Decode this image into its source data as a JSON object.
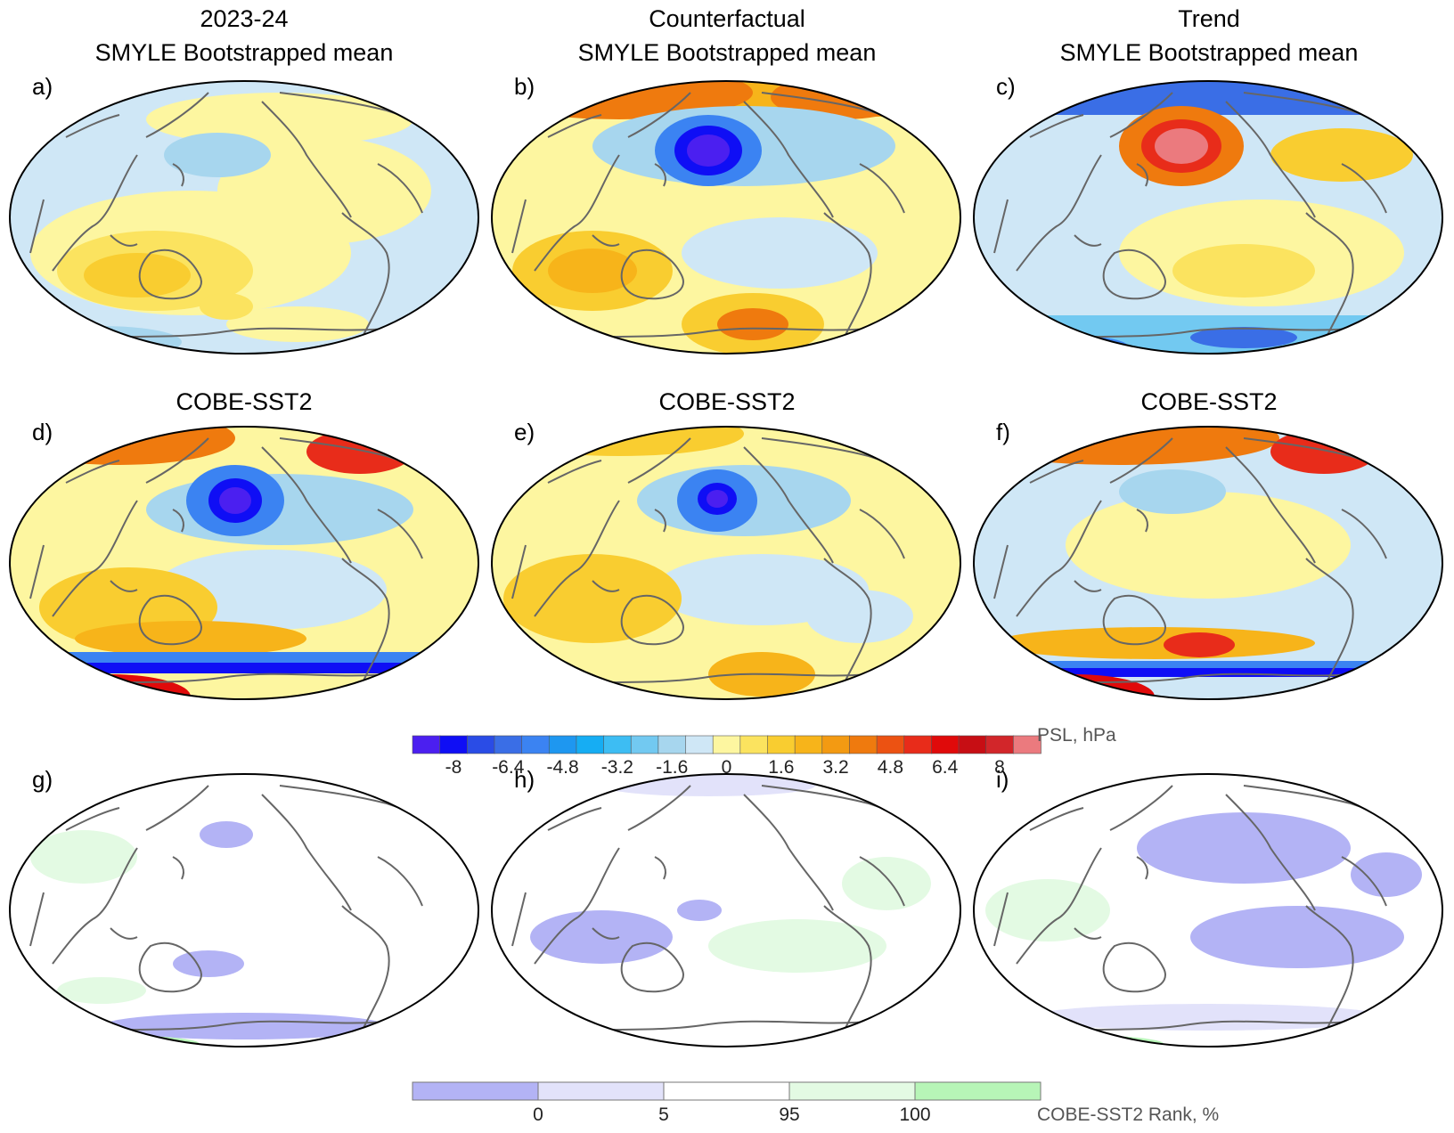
{
  "columns": [
    {
      "title": "2023-24",
      "subtitle": "SMYLE Bootstrapped mean"
    },
    {
      "title": "Counterfactual",
      "subtitle": "SMYLE Bootstrapped mean"
    },
    {
      "title": "Trend",
      "subtitle": "SMYLE Bootstrapped mean"
    }
  ],
  "row2_title": "COBE-SST2",
  "panel_labels": [
    "a)",
    "b)",
    "c)",
    "d)",
    "e)",
    "f)",
    "g)",
    "h)",
    "i)"
  ],
  "psl_colorbar": {
    "unit_label": "PSL, hPa",
    "ticks": [
      "-8",
      "-6.4",
      "-4.8",
      "-3.2",
      "-1.6",
      "0",
      "1.6",
      "3.2",
      "4.8",
      "6.4",
      "8"
    ],
    "colors": [
      "#4b1ff0",
      "#0f0ef5",
      "#2a4ce6",
      "#3a6ee6",
      "#3b83f2",
      "#1e97f0",
      "#16adf3",
      "#3dbdf3",
      "#72c9f1",
      "#a7d6ee",
      "#cfe7f6",
      "#fdf6a0",
      "#fbe35f",
      "#f9cd30",
      "#f7b41a",
      "#f39a12",
      "#ef7a0e",
      "#ec5212",
      "#e82c1a",
      "#e00a0a",
      "#c70e14",
      "#d2262a",
      "#eb7a7e"
    ]
  },
  "rank_colorbar": {
    "unit_label": "COBE-SST2 Rank, %",
    "ticks": [
      "0",
      "5",
      "95",
      "100"
    ],
    "colors": [
      "#b3b3f5",
      "#e2e2fa",
      "#ffffff",
      "#e3fae3",
      "#b7f5b7"
    ]
  }
}
